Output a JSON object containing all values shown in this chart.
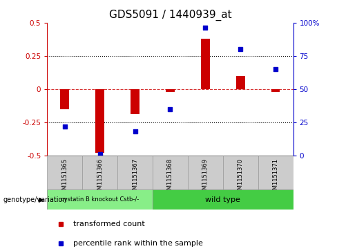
{
  "title": "GDS5091 / 1440939_at",
  "samples": [
    "GSM1151365",
    "GSM1151366",
    "GSM1151367",
    "GSM1151368",
    "GSM1151369",
    "GSM1151370",
    "GSM1151371"
  ],
  "bar_values": [
    -0.15,
    -0.48,
    -0.19,
    -0.02,
    0.38,
    0.1,
    -0.02
  ],
  "dot_values_pct": [
    22,
    1,
    18,
    35,
    96,
    80,
    65
  ],
  "bar_color": "#cc0000",
  "dot_color": "#0000cc",
  "ylim_left": [
    -0.5,
    0.5
  ],
  "ylim_right": [
    0,
    100
  ],
  "yticks_left": [
    -0.5,
    -0.25,
    0,
    0.25,
    0.5
  ],
  "yticks_right": [
    0,
    25,
    50,
    75,
    100
  ],
  "ytick_labels_right": [
    "0",
    "25",
    "50",
    "75",
    "100%"
  ],
  "hline_y": 0,
  "dotted_hlines": [
    0.25,
    -0.25
  ],
  "group1_label": "cystatin B knockout Cstb-/-",
  "group2_label": "wild type",
  "group1_indices": [
    0,
    1,
    2
  ],
  "group2_indices": [
    3,
    4,
    5,
    6
  ],
  "group1_color": "#88ee88",
  "group2_color": "#44cc44",
  "genotype_label": "genotype/variation",
  "legend_bar_label": "transformed count",
  "legend_dot_label": "percentile rank within the sample",
  "bar_width": 0.25,
  "bg_color": "#ffffff",
  "plot_bg_color": "#ffffff",
  "tick_label_color_left": "#cc0000",
  "tick_label_color_right": "#0000cc",
  "title_fontsize": 11,
  "axis_fontsize": 7.5,
  "legend_fontsize": 8,
  "sample_box_color": "#cccccc",
  "sample_box_edge": "#999999"
}
